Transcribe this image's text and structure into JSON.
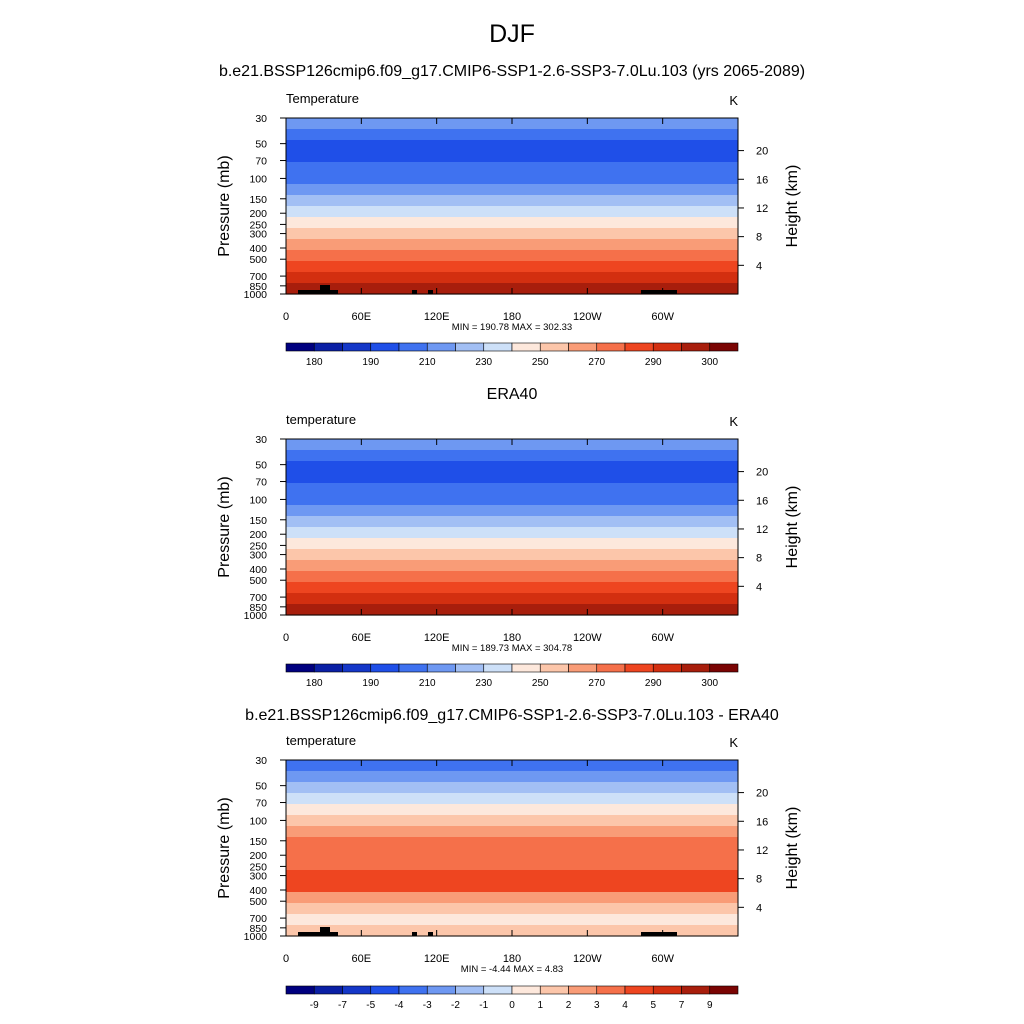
{
  "figure": {
    "title": "DJF"
  },
  "chart_data": [
    {
      "type": "heatmap",
      "panel_title": "b.e21.BSSP126cmip6.f09_g17.CMIP6-SSP1-2.6-SSP3-7.0Lu.103 (yrs 2065-2089)",
      "variable_label": "Temperature",
      "units": "K",
      "ylabel": "Pressure (mb)",
      "ylabel_right": "Height (km)",
      "x_ticks": [
        "0",
        "60E",
        "120E",
        "180",
        "120W",
        "60W"
      ],
      "y_ticks": [
        30,
        50,
        70,
        100,
        150,
        200,
        250,
        300,
        400,
        500,
        700,
        850,
        1000
      ],
      "y_ticks_right": [
        4,
        8,
        12,
        16,
        20
      ],
      "minmax_label": "MIN = 190.78  MAX = 302.33",
      "min": 190.78,
      "max": 302.33,
      "colorbar_labels": [
        "180",
        "190",
        "210",
        "230",
        "250",
        "270",
        "290",
        "300"
      ],
      "band_level_index": [
        5,
        4,
        3,
        3,
        4,
        4,
        5,
        6,
        7,
        8,
        9,
        10,
        11,
        12,
        13,
        14
      ]
    },
    {
      "type": "heatmap",
      "panel_title": "ERA40",
      "variable_label": "temperature",
      "units": "K",
      "ylabel": "Pressure (mb)",
      "ylabel_right": "Height (km)",
      "x_ticks": [
        "0",
        "60E",
        "120E",
        "180",
        "120W",
        "60W"
      ],
      "y_ticks": [
        30,
        50,
        70,
        100,
        150,
        200,
        250,
        300,
        400,
        500,
        700,
        850,
        1000
      ],
      "y_ticks_right": [
        4,
        8,
        12,
        16,
        20
      ],
      "minmax_label": "MIN = 189.73  MAX = 304.78",
      "min": 189.73,
      "max": 304.78,
      "colorbar_labels": [
        "180",
        "190",
        "210",
        "230",
        "250",
        "270",
        "290",
        "300"
      ],
      "band_level_index": [
        5,
        4,
        3,
        3,
        4,
        4,
        5,
        6,
        7,
        8,
        9,
        10,
        11,
        12,
        13,
        14
      ]
    },
    {
      "type": "heatmap",
      "panel_title": "b.e21.BSSP126cmip6.f09_g17.CMIP6-SSP1-2.6-SSP3-7.0Lu.103 - ERA40",
      "variable_label": "temperature",
      "units": "K",
      "ylabel": "Pressure (mb)",
      "ylabel_right": "Height (km)",
      "x_ticks": [
        "0",
        "60E",
        "120E",
        "180",
        "120W",
        "60W"
      ],
      "y_ticks": [
        30,
        50,
        70,
        100,
        150,
        200,
        250,
        300,
        400,
        500,
        700,
        850,
        1000
      ],
      "y_ticks_right": [
        4,
        8,
        12,
        16,
        20
      ],
      "minmax_label": "MIN =  -4.44  MAX =   4.83",
      "min": -4.44,
      "max": 4.83,
      "colorbar_labels": [
        "-9",
        "-7",
        "-5",
        "-4",
        "-3",
        "-2",
        "-1",
        "0",
        "1",
        "2",
        "3",
        "4",
        "5",
        "7",
        "9"
      ],
      "band_level_index": [
        4,
        5,
        6,
        7,
        8,
        9,
        10,
        11,
        11,
        11,
        12,
        12,
        10,
        9,
        8,
        9
      ]
    }
  ],
  "colormap": [
    "#00007f",
    "#0a1fa5",
    "#1437c8",
    "#1f4fe8",
    "#3f72f0",
    "#6e98f2",
    "#a2bff4",
    "#cde0f8",
    "#fde8dc",
    "#fcc6aa",
    "#f99c77",
    "#f5704a",
    "#ee4520",
    "#d32f10",
    "#a81e0c",
    "#7a0403"
  ]
}
